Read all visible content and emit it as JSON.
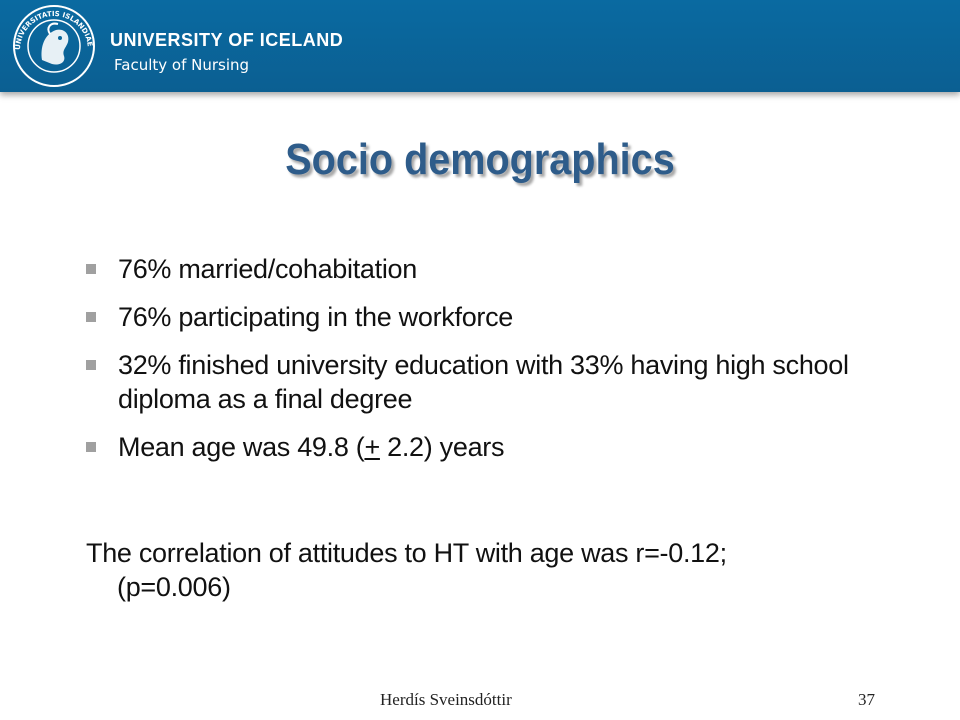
{
  "header": {
    "university": "UNIVERSITY OF ICELAND",
    "faculty": "Faculty of Nursing",
    "seal_text": "UNIVERSITATIS ISLANDIAE SIGILLUM"
  },
  "slide": {
    "title": "Socio demographics",
    "bullets": [
      "76% married/cohabitation",
      "76% participating in the workforce",
      "32% finished university education with 33% having high school diploma as a final degree",
      {
        "before": "Mean age was 49.8 (",
        "underlined": "+",
        "after": " 2.2) years"
      }
    ],
    "correlation_line1": "The correlation of attitudes to HT with age was r=-0.12;",
    "correlation_line2": "(p=0.006)"
  },
  "footer": {
    "author": "Herdís Sveinsdóttir",
    "page_number": "37"
  },
  "colors": {
    "header_bg": "#0b6699",
    "title": "#2e5c8a",
    "bullet_marker": "#a0a0a0"
  }
}
